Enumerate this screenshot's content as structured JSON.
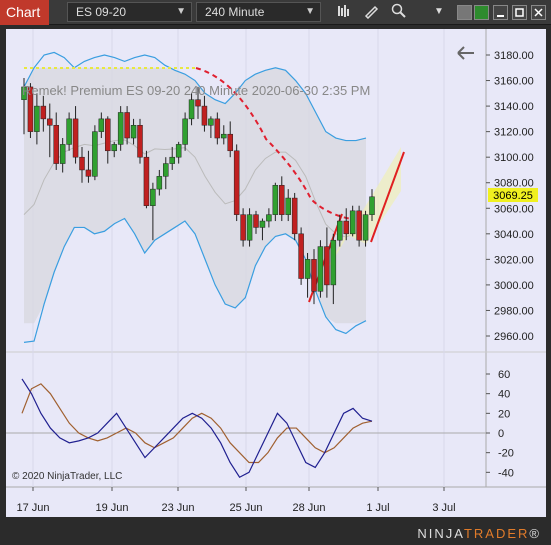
{
  "toolbar": {
    "chart_label": "Chart",
    "instrument": "ES 09-20",
    "interval": "240 Minute",
    "icons": [
      "bar-type-icon",
      "pencil-icon",
      "zoom-icon",
      "dropdown-icon"
    ]
  },
  "chart": {
    "header_text": "Remek!  Premium  ES 09-20  240 Minute  2020-06-30 2:35 PM",
    "copyright": "© 2020 NinjaTrader, LLC",
    "current_price": "3069.25",
    "price_axis": [
      "3180.00",
      "3160.00",
      "3140.00",
      "3120.00",
      "3100.00",
      "3080.00",
      "3060.00",
      "3040.00",
      "3020.00",
      "3000.00",
      "2980.00",
      "2960.00"
    ],
    "osc_axis": [
      "60",
      "40",
      "20",
      "0",
      "-20",
      "-40"
    ],
    "date_axis": [
      "17 Jun",
      "19 Jun",
      "23 Jun",
      "25 Jun",
      "28 Jun",
      "1 Jul",
      "3 Jul"
    ]
  },
  "footer": {
    "logo_a": "NINJA",
    "logo_b": "TRADER",
    "logo_c": "®"
  },
  "chart_data": {
    "type": "candlestick",
    "candles": [
      [
        3145,
        3162,
        3118,
        3155
      ],
      [
        3155,
        3158,
        3115,
        3120
      ],
      [
        3120,
        3150,
        3110,
        3140
      ],
      [
        3140,
        3148,
        3120,
        3130
      ],
      [
        3130,
        3142,
        3100,
        3125
      ],
      [
        3125,
        3135,
        3090,
        3095
      ],
      [
        3095,
        3115,
        3088,
        3110
      ],
      [
        3110,
        3135,
        3105,
        3130
      ],
      [
        3130,
        3140,
        3095,
        3100
      ],
      [
        3100,
        3108,
        3080,
        3090
      ],
      [
        3090,
        3105,
        3080,
        3085
      ],
      [
        3085,
        3125,
        3082,
        3120
      ],
      [
        3120,
        3135,
        3115,
        3130
      ],
      [
        3130,
        3132,
        3095,
        3105
      ],
      [
        3105,
        3112,
        3100,
        3110
      ],
      [
        3110,
        3140,
        3105,
        3135
      ],
      [
        3135,
        3140,
        3110,
        3115
      ],
      [
        3115,
        3130,
        3110,
        3125
      ],
      [
        3125,
        3130,
        3095,
        3100
      ],
      [
        3100,
        3105,
        3060,
        3062
      ],
      [
        3062,
        3080,
        3035,
        3075
      ],
      [
        3075,
        3090,
        3070,
        3085
      ],
      [
        3085,
        3100,
        3075,
        3095
      ],
      [
        3095,
        3108,
        3090,
        3100
      ],
      [
        3100,
        3112,
        3095,
        3110
      ],
      [
        3110,
        3135,
        3105,
        3130
      ],
      [
        3130,
        3150,
        3125,
        3145
      ],
      [
        3145,
        3155,
        3130,
        3140
      ],
      [
        3140,
        3148,
        3120,
        3125
      ],
      [
        3125,
        3132,
        3115,
        3130
      ],
      [
        3130,
        3135,
        3110,
        3115
      ],
      [
        3115,
        3125,
        3110,
        3118
      ],
      [
        3118,
        3128,
        3100,
        3105
      ],
      [
        3105,
        3110,
        3050,
        3055
      ],
      [
        3055,
        3060,
        3030,
        3035
      ],
      [
        3035,
        3060,
        3030,
        3055
      ],
      [
        3055,
        3058,
        3040,
        3045
      ],
      [
        3045,
        3052,
        3035,
        3050
      ],
      [
        3050,
        3060,
        3045,
        3055
      ],
      [
        3055,
        3080,
        3050,
        3078
      ],
      [
        3078,
        3085,
        3050,
        3055
      ],
      [
        3055,
        3075,
        3050,
        3068
      ],
      [
        3068,
        3072,
        3035,
        3040
      ],
      [
        3040,
        3045,
        3000,
        3005
      ],
      [
        3005,
        3025,
        2990,
        3020
      ],
      [
        3020,
        3028,
        2985,
        2995
      ],
      [
        2995,
        3035,
        2990,
        3030
      ],
      [
        3030,
        3045,
        2990,
        3000
      ],
      [
        3000,
        3040,
        2985,
        3035
      ],
      [
        3035,
        3055,
        3030,
        3050
      ],
      [
        3050,
        3060,
        3035,
        3040
      ],
      [
        3040,
        3062,
        3038,
        3058
      ],
      [
        3058,
        3062,
        3030,
        3035
      ],
      [
        3035,
        3058,
        3030,
        3055
      ],
      [
        3055,
        3075,
        3050,
        3069
      ]
    ],
    "upper_band": [
      3155,
      3170,
      3180,
      3182,
      3178,
      3170,
      3175,
      3178,
      3180,
      3178,
      3175,
      3178,
      3180,
      3178,
      3172,
      3168,
      3165,
      3160,
      3150,
      3145,
      3142,
      3150,
      3160,
      3165,
      3168,
      3170,
      3168,
      3160,
      3150,
      3135,
      3120,
      3115,
      3113,
      3113,
      3115
    ],
    "lower_band": [
      2955,
      2956,
      2985,
      3010,
      3030,
      3045,
      3045,
      3040,
      3042,
      3048,
      3052,
      3040,
      3025,
      3035,
      3040,
      3045,
      3050,
      3040,
      3020,
      3000,
      2985,
      2982,
      2990,
      3015,
      3030,
      3038,
      3040,
      3035,
      3020,
      2995,
      2975,
      2965,
      2962,
      2968,
      2972
    ],
    "osc_blue": [
      55,
      40,
      20,
      5,
      -5,
      -10,
      -8,
      -5,
      0,
      10,
      20,
      5,
      -10,
      -25,
      -15,
      -5,
      5,
      15,
      20,
      15,
      5,
      -10,
      -30,
      -45,
      -40,
      -20,
      0,
      20,
      10,
      -10,
      -30,
      -35,
      -20,
      0,
      20,
      25,
      15,
      12
    ],
    "osc_brown": [
      20,
      45,
      50,
      40,
      25,
      10,
      0,
      -5,
      -8,
      -5,
      0,
      5,
      0,
      -10,
      -15,
      -10,
      -5,
      5,
      15,
      20,
      15,
      5,
      -10,
      -20,
      -30,
      -30,
      -20,
      -5,
      5,
      5,
      -5,
      -15,
      -20,
      -15,
      -5,
      5,
      10,
      12
    ]
  }
}
